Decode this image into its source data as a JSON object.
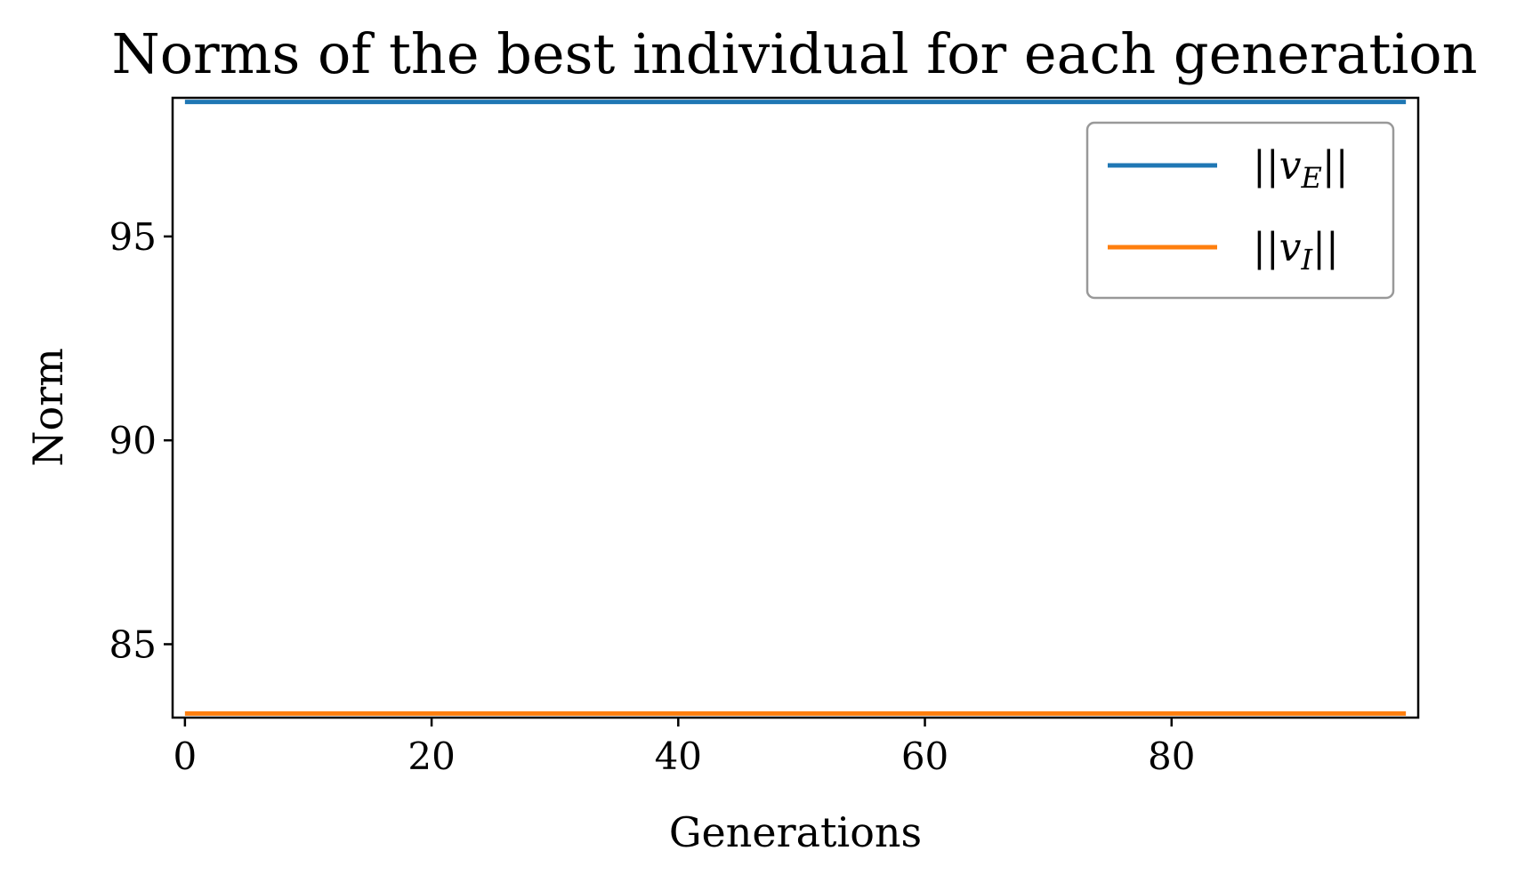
{
  "chart_data": {
    "type": "line",
    "title": "Norms of the best individual for each generation",
    "xlabel": "Generations",
    "ylabel": "Norm",
    "xlim": [
      -1,
      100
    ],
    "ylim": [
      83.2,
      98.4
    ],
    "xticks": [
      0,
      20,
      40,
      60,
      80
    ],
    "yticks": [
      85,
      90,
      95
    ],
    "x_range": [
      0,
      99
    ],
    "series": [
      {
        "name": "||v_E||",
        "color": "#1f77b4",
        "value": 98.3
      },
      {
        "name": "||v_I||",
        "color": "#ff7f0e",
        "value": 83.3
      }
    ],
    "legend": {
      "placement": "upper right",
      "entries": [
        {
          "label": "||v",
          "subscript": "E",
          "suffix": "||",
          "color": "#1f77b4"
        },
        {
          "label": "||v",
          "subscript": "I",
          "suffix": "||",
          "color": "#ff7f0e"
        }
      ]
    },
    "grid": false
  }
}
